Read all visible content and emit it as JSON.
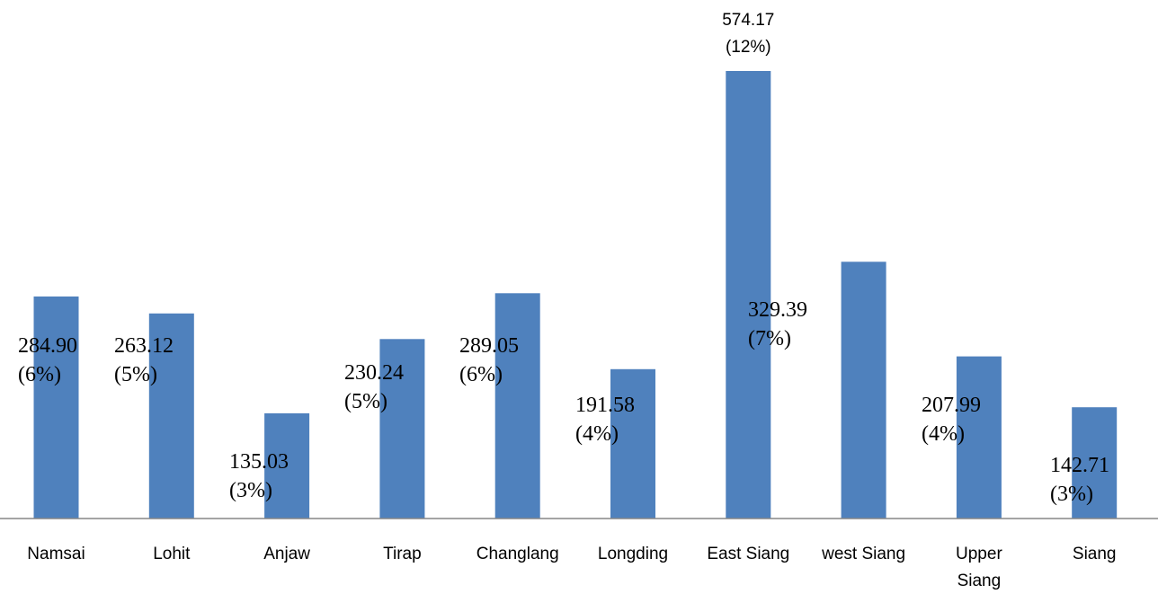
{
  "chart_data": {
    "type": "bar",
    "title": "",
    "xlabel": "",
    "ylabel": "",
    "ylim": [
      0,
      590
    ],
    "grid": false,
    "legend": "none",
    "bar_color": "#4f81bd",
    "axis_color": "#868686",
    "categories": [
      [
        "Namsai"
      ],
      [
        "Lohit"
      ],
      [
        "Anjaw"
      ],
      [
        "Tirap"
      ],
      [
        "Changlang"
      ],
      [
        "Longding"
      ],
      [
        "East Siang"
      ],
      [
        "west Siang"
      ],
      [
        "Upper",
        "Siang"
      ],
      [
        "Siang"
      ]
    ],
    "series": [
      {
        "values": [
          284.9,
          263.12,
          135.03,
          230.24,
          289.05,
          191.58,
          574.17,
          329.39,
          207.99,
          142.71
        ]
      }
    ],
    "data_labels": [
      [
        "284.90",
        "(6%)"
      ],
      [
        "263.12",
        "(5%)"
      ],
      [
        "135.03",
        "(3%)"
      ],
      [
        "230.24",
        "(5%)"
      ],
      [
        "289.05",
        "(6%)"
      ],
      [
        "191.58",
        "(4%)"
      ],
      [
        "574.17",
        "(12%)"
      ],
      [
        "329.39",
        "(7%)"
      ],
      [
        "207.99",
        "(4%)"
      ],
      [
        "142.71",
        "(3%)"
      ]
    ]
  }
}
